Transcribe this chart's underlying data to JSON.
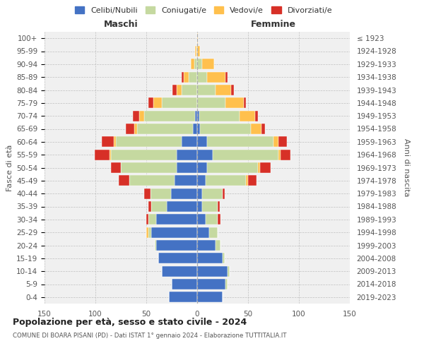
{
  "age_groups": [
    "0-4",
    "5-9",
    "10-14",
    "15-19",
    "20-24",
    "25-29",
    "30-34",
    "35-39",
    "40-44",
    "45-49",
    "50-54",
    "55-59",
    "60-64",
    "65-69",
    "70-74",
    "75-79",
    "80-84",
    "85-89",
    "90-94",
    "95-99",
    "100+"
  ],
  "birth_years": [
    "2019-2023",
    "2014-2018",
    "2009-2013",
    "2004-2008",
    "1999-2003",
    "1994-1998",
    "1989-1993",
    "1984-1988",
    "1979-1983",
    "1974-1978",
    "1969-1973",
    "1964-1968",
    "1959-1963",
    "1954-1958",
    "1949-1953",
    "1944-1948",
    "1939-1943",
    "1934-1938",
    "1929-1933",
    "1924-1928",
    "≤ 1923"
  ],
  "maschi": {
    "celibi": [
      28,
      25,
      35,
      38,
      40,
      45,
      40,
      30,
      26,
      22,
      20,
      20,
      15,
      4,
      2,
      0,
      0,
      0,
      0,
      0,
      0
    ],
    "coniugati": [
      0,
      0,
      0,
      0,
      2,
      3,
      8,
      15,
      20,
      45,
      55,
      65,
      65,
      55,
      50,
      35,
      15,
      8,
      3,
      1,
      0
    ],
    "vedovi": [
      0,
      0,
      0,
      0,
      0,
      2,
      0,
      0,
      0,
      0,
      0,
      1,
      2,
      3,
      5,
      8,
      5,
      5,
      3,
      1,
      0
    ],
    "divorziati": [
      0,
      0,
      0,
      0,
      0,
      0,
      2,
      3,
      6,
      10,
      10,
      15,
      12,
      8,
      6,
      5,
      4,
      2,
      0,
      0,
      0
    ]
  },
  "femmine": {
    "nubili": [
      25,
      28,
      30,
      25,
      18,
      12,
      8,
      5,
      5,
      8,
      10,
      15,
      10,
      3,
      2,
      0,
      0,
      0,
      0,
      0,
      0
    ],
    "coniugate": [
      0,
      2,
      2,
      2,
      5,
      8,
      12,
      15,
      20,
      40,
      50,
      65,
      65,
      50,
      40,
      28,
      18,
      10,
      5,
      0,
      0
    ],
    "vedove": [
      0,
      0,
      0,
      0,
      0,
      0,
      0,
      0,
      0,
      2,
      2,
      2,
      5,
      10,
      15,
      18,
      15,
      18,
      12,
      3,
      1
    ],
    "divorziate": [
      0,
      0,
      0,
      0,
      0,
      0,
      3,
      2,
      2,
      8,
      10,
      10,
      8,
      4,
      3,
      2,
      3,
      2,
      0,
      0,
      0
    ]
  },
  "colors": {
    "celibi_nubili": "#4472c4",
    "coniugati": "#c5d9a0",
    "vedovi": "#ffc04d",
    "divorziati": "#d73027"
  },
  "xlim": 150,
  "title": "Popolazione per età, sesso e stato civile - 2024",
  "subtitle": "COMUNE DI BOARA PISANI (PD) - Dati ISTAT 1° gennaio 2024 - Elaborazione TUTTITALIA.IT",
  "xlabel_left": "Maschi",
  "xlabel_right": "Femmine",
  "ylabel_left": "Fasce di età",
  "ylabel_right": "Anni di nascita",
  "legend_labels": [
    "Celibi/Nubili",
    "Coniugati/e",
    "Vedovi/e",
    "Divorziati/e"
  ],
  "background_color": "#ffffff",
  "plot_bg_color": "#f0f0f0"
}
